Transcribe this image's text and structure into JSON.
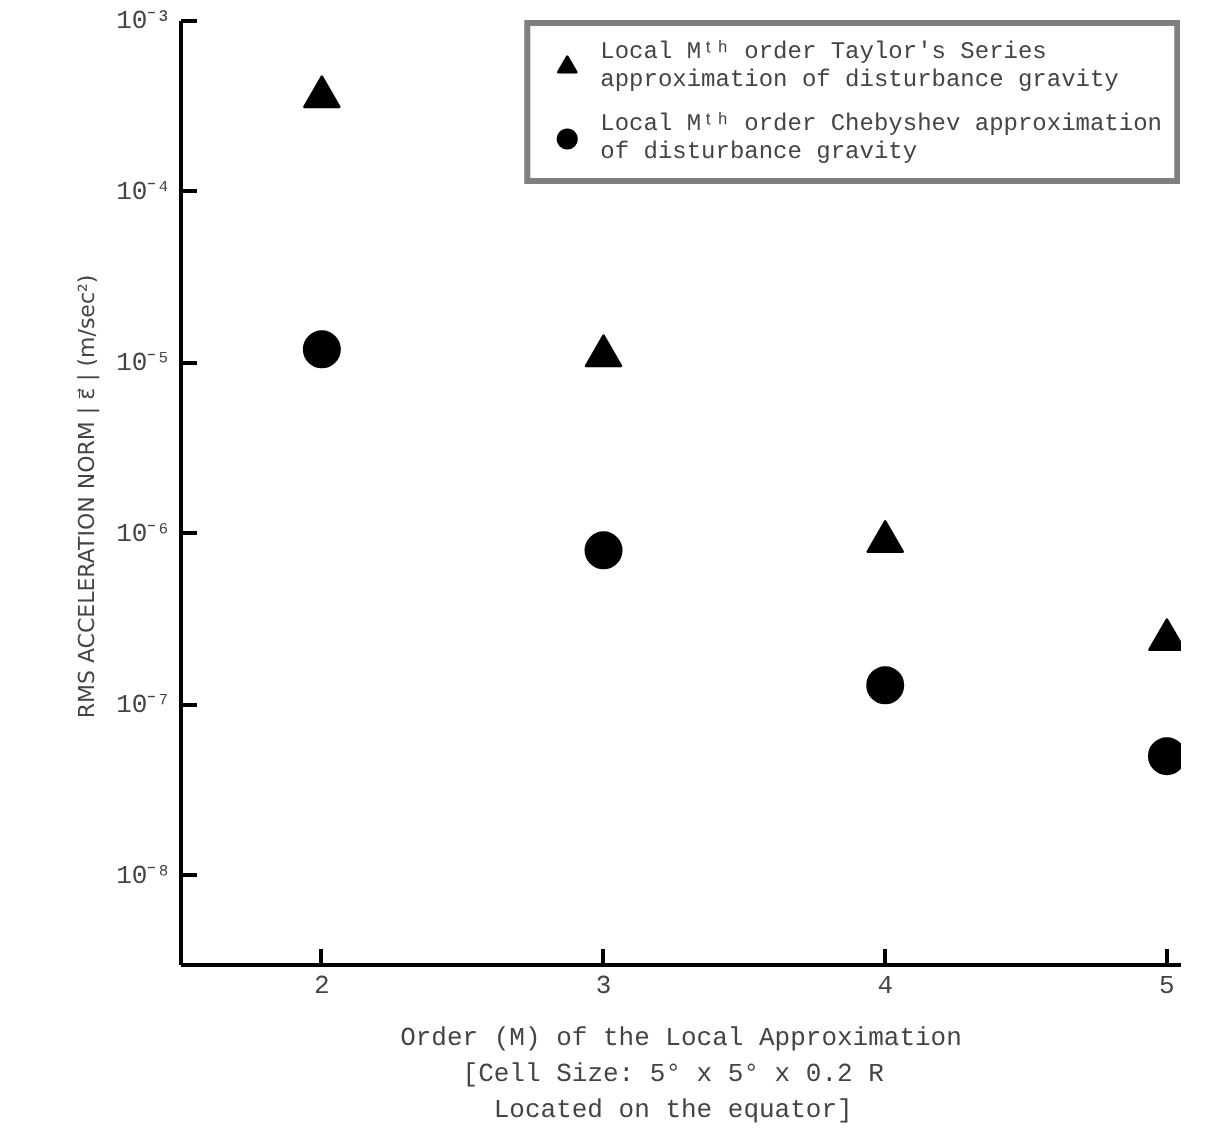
{
  "chart_data": {
    "type": "scatter",
    "xlabel": "Order (M) of the Local Approximation\n[Cell Size:  5° x 5° x 0.2 R\n Located on the equator]",
    "ylabel": "RMS ACCELERATION NORM | ε⃗ |  (m/sec²)",
    "x": [
      2,
      3,
      4,
      5
    ],
    "series": [
      {
        "name": "Local Mᵗʰ order Taylor's Series\napproximation of disturbance gravity",
        "color": "#000000",
        "marker": "triangle",
        "values": [
          0.00036,
          1.1e-05,
          9e-07,
          2.4e-07
        ]
      },
      {
        "name": "Local Mᵗʰ order Chebyshev approximation\nof disturbance gravity",
        "color": "#000000",
        "marker": "circle",
        "values": [
          1.2e-05,
          8e-07,
          1.3e-07,
          5e-08
        ]
      }
    ],
    "log": "y",
    "xlim": [
      1.5,
      5.05
    ],
    "ylim": [
      3e-09,
      0.001
    ],
    "xticks": [
      2,
      3,
      4,
      5
    ],
    "yticks": [
      {
        "value": 0.001,
        "label": "10⁻³"
      },
      {
        "value": 0.0001,
        "label": "10⁻⁴"
      },
      {
        "value": 1e-05,
        "label": "10⁻⁵"
      },
      {
        "value": 1e-06,
        "label": "10⁻⁶"
      },
      {
        "value": 1e-07,
        "label": "10⁻⁷"
      },
      {
        "value": 1e-08,
        "label": "10⁻⁸"
      }
    ],
    "grid": false,
    "legend": "top right"
  }
}
